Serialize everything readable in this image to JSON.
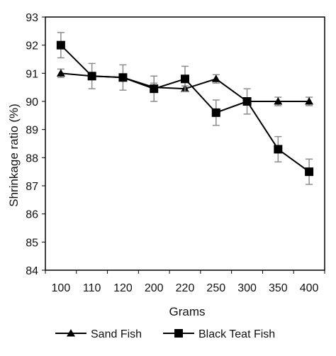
{
  "chart_data": {
    "type": "line",
    "title": "",
    "xlabel": "Grams",
    "ylabel": "Shrinkage ratio (%)",
    "categories": [
      "100",
      "110",
      "120",
      "200",
      "220",
      "250",
      "300",
      "350",
      "400"
    ],
    "yticks": [
      "84",
      "85",
      "86",
      "87",
      "88",
      "89",
      "90",
      "91",
      "92",
      "93"
    ],
    "ylim": [
      84,
      93
    ],
    "grid": false,
    "legend_position": "bottom",
    "series": [
      {
        "name": "Sand Fish",
        "marker": "triangle",
        "color": "#000000",
        "values": [
          91.0,
          90.9,
          90.85,
          90.5,
          90.45,
          90.8,
          90.0,
          90.0,
          90.0
        ],
        "errors": [
          0.15,
          0.1,
          0.1,
          0.15,
          0.1,
          0.15,
          0.1,
          0.15,
          0.15
        ]
      },
      {
        "name": "Black Teat Fish",
        "marker": "square",
        "color": "#000000",
        "values": [
          92.0,
          90.9,
          90.85,
          90.45,
          90.8,
          89.6,
          90.0,
          88.3,
          87.5
        ],
        "errors": [
          0.45,
          0.45,
          0.45,
          0.45,
          0.45,
          0.45,
          0.45,
          0.45,
          0.45
        ]
      }
    ]
  }
}
